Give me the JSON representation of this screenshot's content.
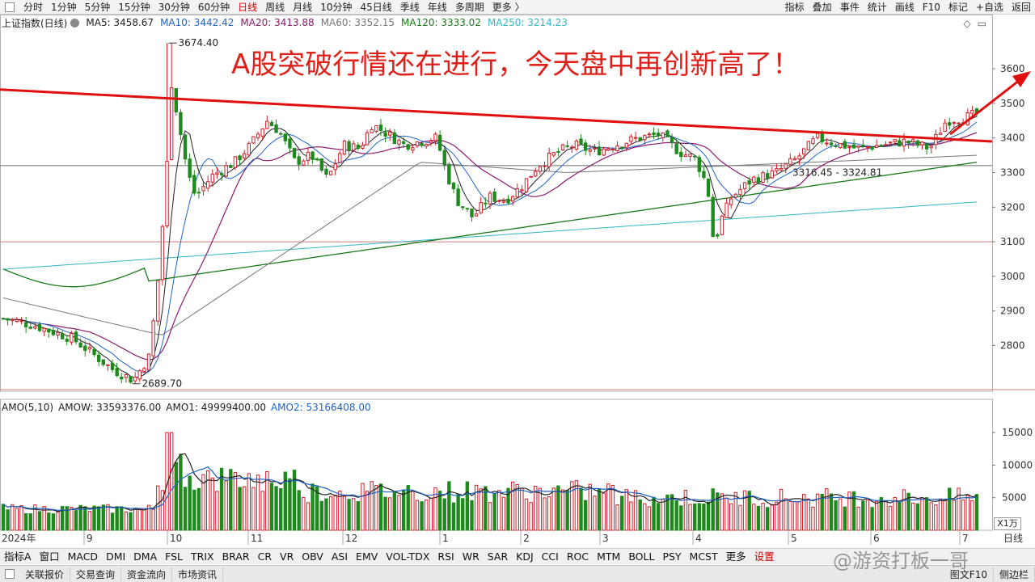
{
  "toolbar": {
    "items": [
      "分时",
      "1分钟",
      "5分钟",
      "15分钟",
      "30分钟",
      "60分钟",
      "日线",
      "周线",
      "月线",
      "10分钟",
      "45日线",
      "季线",
      "年线",
      "多周期",
      "更多 〉"
    ],
    "active": "日线",
    "right_items": [
      "指标",
      "叠加",
      "事件",
      "统计",
      "画线",
      "F10",
      "标记",
      "+自选",
      "返回"
    ]
  },
  "main_legend": {
    "title": "上证指数(日线)",
    "ma": [
      {
        "label": "MA5: 3458.67",
        "color": "#222222"
      },
      {
        "label": "MA10: 3442.42",
        "color": "#1f63c6"
      },
      {
        "label": "MA20: 3413.88",
        "color": "#8a1a6e"
      },
      {
        "label": "MA60: 3352.15",
        "color": "#777777"
      },
      {
        "label": "MA120: 3333.02",
        "color": "#1a7a1a"
      },
      {
        "label": "MA250: 3214.23",
        "color": "#33b5c7"
      }
    ]
  },
  "top_tools": [
    "◇",
    "▭"
  ],
  "headline": "A股突破行情还在进行，今天盘中再创新高了！",
  "colors": {
    "up": "#d0202a",
    "down": "#1e8a1e",
    "trend_line": "#e01010",
    "grid_h": "#d9a0a0"
  },
  "chart_data": [
    {
      "type": "candlestick",
      "title": "上证指数(日线)",
      "y_ticks": [
        2800,
        2900,
        3000,
        3100,
        3200,
        3300,
        3400,
        3500,
        3600
      ],
      "ylim": [
        2668,
        3710
      ],
      "x_ticks": [
        "2024年",
        "9",
        "10",
        "11",
        "12",
        "1",
        "2",
        "3",
        "4",
        "5",
        "6",
        "7",
        "日线"
      ],
      "annotations": {
        "high": "3674.40",
        "low": "2689.70",
        "range": "3316.45 - 3324.81"
      },
      "reference_lines": [
        3100,
        3320
      ],
      "trend_line": {
        "from": {
          "x": 0,
          "y": 3540
        },
        "to": {
          "x": 1,
          "y": 3390
        }
      }
    },
    {
      "type": "bar",
      "title": "AMO(5,10)",
      "series_labels": [
        {
          "label": "AMO(5,10)",
          "color": "#222222"
        },
        {
          "label": "AMOW: 33593376.00",
          "color": "#222222"
        },
        {
          "label": "AMO1: 49999400.00",
          "color": "#222222"
        },
        {
          "label": "AMO2: 53166408.00",
          "color": "#1f63c6"
        }
      ],
      "y_ticks": [
        5000,
        10000,
        15000
      ],
      "ylim": [
        0,
        17500
      ],
      "unit": "X1万"
    }
  ],
  "indicators": [
    "指标A",
    "窗口",
    "MACD",
    "DMI",
    "DMA",
    "FSL",
    "TRIX",
    "BRAR",
    "CR",
    "VR",
    "OBV",
    "ASI",
    "EMV",
    "VOL-TDX",
    "RSI",
    "WR",
    "SAR",
    "KDJ",
    "CCI",
    "ROC",
    "MTM",
    "BOLL",
    "PSY",
    "MCST",
    "更多",
    "设置"
  ],
  "status": {
    "items": [
      "关联报价",
      "交易查询",
      "资金流向",
      "市场资讯"
    ],
    "right": [
      "图文F10",
      "侧边栏"
    ]
  },
  "watermark": "@游资打板一哥"
}
